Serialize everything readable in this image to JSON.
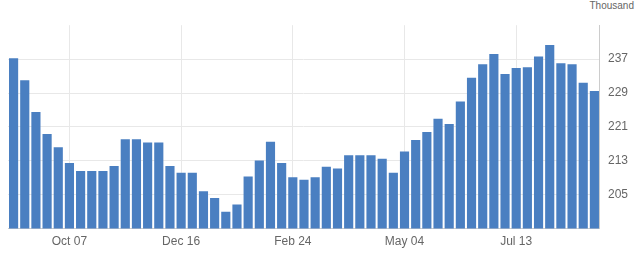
{
  "chart_data": {
    "type": "bar",
    "ylabel": "Thousand",
    "categories": [
      null,
      null,
      null,
      null,
      null,
      "Oct 07",
      null,
      null,
      null,
      null,
      null,
      null,
      null,
      null,
      null,
      "Dec 16",
      null,
      null,
      null,
      null,
      null,
      null,
      null,
      null,
      null,
      "Feb 24",
      null,
      null,
      null,
      null,
      null,
      null,
      null,
      null,
      null,
      "May 04",
      null,
      null,
      null,
      null,
      null,
      null,
      null,
      null,
      null,
      "Jul 13",
      null,
      null,
      null,
      null,
      null,
      null,
      null
    ],
    "values": [
      237.2,
      232,
      224.5,
      219.3,
      216.2,
      212.5,
      210.6,
      210.6,
      210.6,
      211.8,
      218.1,
      218.1,
      217.3,
      217.3,
      211.8,
      210.2,
      210.2,
      205.8,
      204.2,
      201,
      202.7,
      209.3,
      213.1,
      217.5,
      212.5,
      209.1,
      208.5,
      209.1,
      211.6,
      211.2,
      214.3,
      214.3,
      214.3,
      213.5,
      210.2,
      215.2,
      217.9,
      219.8,
      222.9,
      221.7,
      227,
      232.6,
      235.8,
      238.2,
      233.5,
      234.9,
      235.1,
      237.6,
      240.3,
      236,
      235.8,
      231.4,
      229.5
    ],
    "color": "#4a7fc1",
    "ylim": [
      197,
      245
    ],
    "yticks": [
      205,
      213,
      221,
      229,
      237
    ],
    "grid": true
  }
}
